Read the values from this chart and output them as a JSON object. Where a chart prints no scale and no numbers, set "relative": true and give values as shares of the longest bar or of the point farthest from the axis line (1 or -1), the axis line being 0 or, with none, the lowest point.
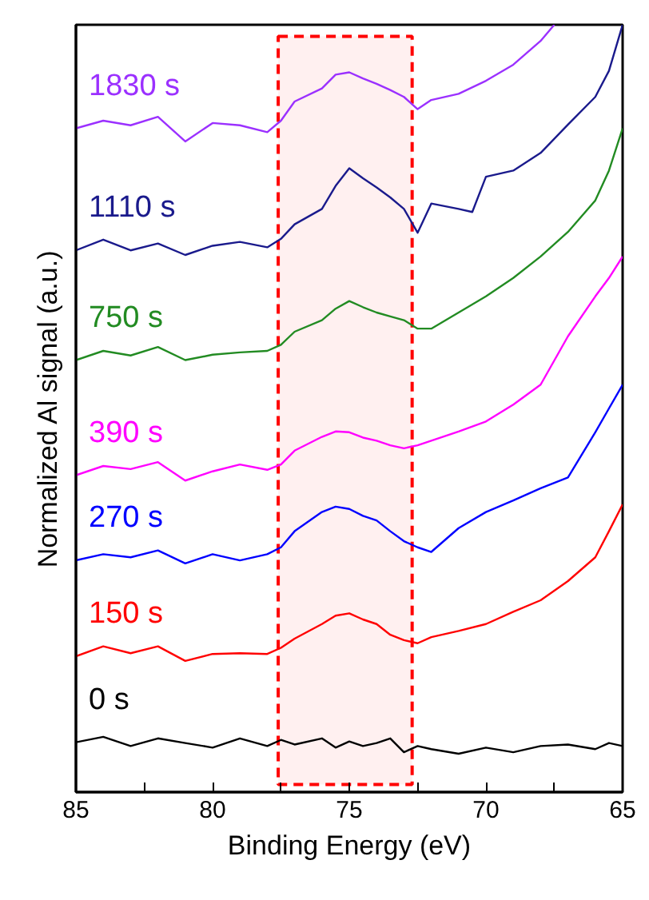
{
  "chart_data": {
    "type": "line",
    "relative": true,
    "xlabel": "Binding Energy (eV)",
    "ylabel": "Normalized Al signal (a.u.)",
    "xlim": [
      85,
      65
    ],
    "xticks": [
      85,
      {
        "value": 82.5,
        "label": null
      },
      80,
      {
        "value": 77.5,
        "label": null
      },
      75,
      {
        "value": 72.5,
        "label": null
      },
      70,
      {
        "value": 67.5,
        "label": null
      },
      65
    ],
    "bands": [
      {
        "axis": "x",
        "from": 77.6,
        "to": 72.7,
        "color": "#ff0000"
      }
    ],
    "series": [
      {
        "name": "1830 s",
        "color": "#9b30ff",
        "x": [
          85,
          84,
          83,
          82,
          81,
          80,
          79,
          78,
          77.5,
          77,
          76,
          75.5,
          75,
          74.5,
          74,
          73.5,
          73,
          72.5,
          72,
          71,
          70,
          69,
          68,
          67.5
        ],
        "values": [
          0.865,
          0.875,
          0.869,
          0.88,
          0.848,
          0.872,
          0.869,
          0.86,
          0.875,
          0.9,
          0.917,
          0.935,
          0.938,
          0.93,
          0.923,
          0.915,
          0.906,
          0.89,
          0.902,
          0.91,
          0.927,
          0.948,
          0.979,
          1.0
        ]
      },
      {
        "name": "1110 s",
        "color": "#1a1a8c",
        "x": [
          85,
          84,
          83,
          82,
          81,
          80,
          79,
          78,
          77.5,
          77,
          76,
          75.5,
          75,
          74.5,
          74,
          73.5,
          73,
          72.5,
          72,
          71,
          70.5,
          70,
          69,
          68,
          67,
          66,
          65.5,
          65
        ],
        "values": [
          0.706,
          0.72,
          0.706,
          0.715,
          0.7,
          0.712,
          0.717,
          0.71,
          0.721,
          0.74,
          0.76,
          0.79,
          0.813,
          0.8,
          0.788,
          0.775,
          0.76,
          0.729,
          0.767,
          0.76,
          0.756,
          0.802,
          0.81,
          0.833,
          0.87,
          0.906,
          0.94,
          1.0
        ]
      },
      {
        "name": "750 s",
        "color": "#228b22",
        "x": [
          85,
          84,
          83,
          82,
          81,
          80,
          79,
          78,
          77.5,
          77,
          76,
          75.5,
          75,
          74.5,
          74,
          73.5,
          73,
          72.5,
          72,
          71,
          70,
          69,
          68,
          67,
          66,
          65.5,
          65
        ],
        "values": [
          0.563,
          0.575,
          0.569,
          0.58,
          0.563,
          0.57,
          0.573,
          0.575,
          0.583,
          0.6,
          0.615,
          0.63,
          0.64,
          0.632,
          0.625,
          0.62,
          0.615,
          0.604,
          0.604,
          0.625,
          0.646,
          0.67,
          0.698,
          0.73,
          0.771,
          0.81,
          0.865
        ]
      },
      {
        "name": "390 s",
        "color": "#ff00ff",
        "x": [
          85,
          84,
          83,
          82,
          81,
          80,
          79,
          78,
          77.5,
          77,
          76,
          75.5,
          75,
          74.5,
          74,
          73.5,
          73,
          72.5,
          72,
          71,
          70,
          69,
          68,
          67,
          66,
          65.5,
          65
        ],
        "values": [
          0.413,
          0.425,
          0.421,
          0.43,
          0.406,
          0.418,
          0.427,
          0.42,
          0.427,
          0.445,
          0.463,
          0.47,
          0.469,
          0.462,
          0.458,
          0.452,
          0.448,
          0.452,
          0.458,
          0.47,
          0.483,
          0.505,
          0.531,
          0.594,
          0.646,
          0.67,
          0.698
        ]
      },
      {
        "name": "270 s",
        "color": "#0000ff",
        "x": [
          85,
          84,
          83,
          82,
          81,
          80,
          79,
          78,
          77.5,
          77,
          76,
          75.5,
          75,
          74.5,
          74,
          73.5,
          73,
          72.5,
          72,
          71,
          70,
          69,
          68,
          67,
          66,
          65.5,
          65
        ],
        "values": [
          0.302,
          0.31,
          0.306,
          0.315,
          0.298,
          0.31,
          0.302,
          0.31,
          0.319,
          0.34,
          0.365,
          0.372,
          0.369,
          0.36,
          0.354,
          0.34,
          0.327,
          0.319,
          0.313,
          0.344,
          0.365,
          0.38,
          0.396,
          0.41,
          0.469,
          0.5,
          0.531
        ]
      },
      {
        "name": "150 s",
        "color": "#ff0000",
        "x": [
          85,
          84,
          83,
          82,
          81,
          80,
          79,
          78,
          77.5,
          77,
          76,
          75.5,
          75,
          74.5,
          74,
          73.5,
          73,
          72.5,
          72,
          71,
          70,
          69,
          68,
          67,
          66,
          65.5,
          65
        ],
        "values": [
          0.177,
          0.19,
          0.181,
          0.19,
          0.171,
          0.18,
          0.181,
          0.18,
          0.188,
          0.2,
          0.219,
          0.23,
          0.233,
          0.225,
          0.219,
          0.205,
          0.198,
          0.194,
          0.202,
          0.21,
          0.219,
          0.235,
          0.25,
          0.275,
          0.306,
          0.34,
          0.375
        ]
      },
      {
        "name": "0 s",
        "color": "#000000",
        "x": [
          85,
          84,
          83,
          82,
          81,
          80,
          79,
          78,
          77.5,
          77,
          76,
          75.5,
          75,
          74.5,
          74,
          73.5,
          73,
          72.5,
          72,
          71,
          70,
          69,
          68,
          67,
          66,
          65.5,
          65
        ],
        "values": [
          0.065,
          0.072,
          0.06,
          0.07,
          0.064,
          0.058,
          0.07,
          0.06,
          0.068,
          0.062,
          0.07,
          0.058,
          0.066,
          0.06,
          0.064,
          0.07,
          0.052,
          0.06,
          0.056,
          0.05,
          0.058,
          0.052,
          0.06,
          0.062,
          0.056,
          0.064,
          0.06
        ]
      }
    ]
  }
}
